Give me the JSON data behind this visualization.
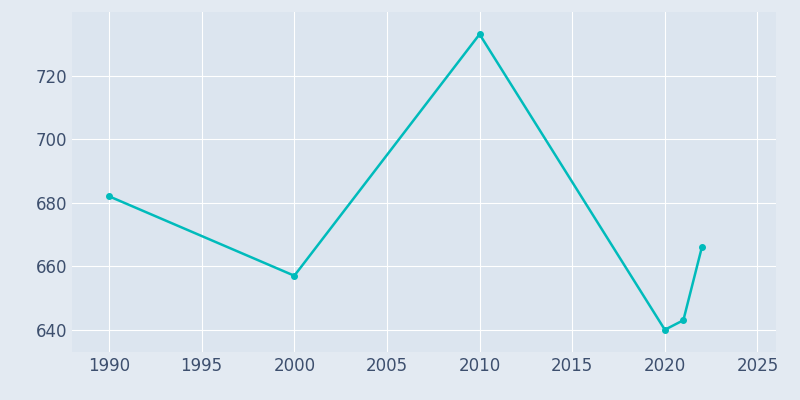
{
  "years": [
    1990,
    2000,
    2010,
    2020,
    2021,
    2022
  ],
  "population": [
    682,
    657,
    733,
    640,
    643,
    666
  ],
  "line_color": "#00BBBB",
  "bg_color": "#E3EAF2",
  "plot_bg_color": "#DCE5EF",
  "xlim": [
    1988,
    2026
  ],
  "ylim": [
    633,
    740
  ],
  "yticks": [
    640,
    660,
    680,
    700,
    720
  ],
  "xticks": [
    1990,
    1995,
    2000,
    2005,
    2010,
    2015,
    2020,
    2025
  ],
  "linewidth": 1.8,
  "tick_color": "#3D4F6E",
  "tick_fontsize": 12,
  "marker": "o",
  "markersize": 4
}
